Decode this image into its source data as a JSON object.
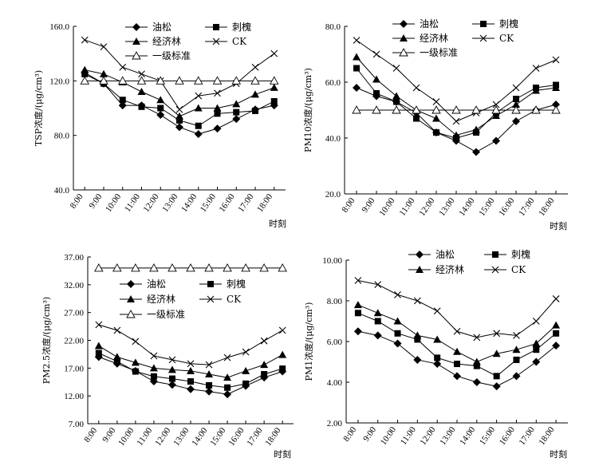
{
  "chart_data": [
    {
      "type": "line",
      "ylabel": "TSP浓度/(μg/cm³)",
      "xlabel": "时刻",
      "categories": [
        "8:00",
        "9:00",
        "10:00",
        "11:00",
        "12:00",
        "13:00",
        "14:00",
        "15:00",
        "16:00",
        "17:00",
        "18:00"
      ],
      "ylim": [
        40.0,
        160.0
      ],
      "yticks": [
        "40.0",
        "80.0",
        "120.0",
        "160.0"
      ],
      "series": [
        {
          "name": "油松",
          "marker": "diamond",
          "values": [
            126,
            118,
            102,
            102,
            95,
            86,
            81,
            85,
            92,
            99,
            102
          ]
        },
        {
          "name": "刺槐",
          "marker": "square",
          "values": [
            125,
            118,
            106,
            101,
            100,
            91,
            87,
            96,
            97,
            98,
            105
          ]
        },
        {
          "name": "经济林",
          "marker": "triangle",
          "values": [
            128,
            125,
            119,
            112,
            106,
            94,
            100,
            100,
            103,
            110,
            115
          ]
        },
        {
          "name": "CK",
          "marker": "x",
          "values": [
            150,
            145,
            130,
            125,
            120,
            99,
            109,
            111,
            118,
            130,
            140
          ]
        },
        {
          "name": "一级标准",
          "marker": "open-triangle",
          "values": [
            120,
            120,
            120,
            120,
            120,
            120,
            120,
            120,
            120,
            120,
            120
          ]
        }
      ]
    },
    {
      "type": "line",
      "ylabel": "PM10浓度/(μg/cm³)",
      "xlabel": "时刻",
      "categories": [
        "8:00",
        "9:00",
        "10:00",
        "11:00",
        "12:00",
        "13:00",
        "14:00",
        "15:00",
        "16:00",
        "17:00",
        "18:00"
      ],
      "ylim": [
        20.0,
        80.0
      ],
      "yticks": [
        "20.0",
        "40.0",
        "60.0",
        "80.0"
      ],
      "series": [
        {
          "name": "油松",
          "marker": "diamond",
          "values": [
            58,
            55,
            53,
            49,
            42,
            39,
            35,
            39,
            46,
            50,
            52
          ]
        },
        {
          "name": "刺槐",
          "marker": "square",
          "values": [
            65,
            56,
            53,
            47,
            42,
            40,
            42,
            49,
            54,
            58,
            59
          ]
        },
        {
          "name": "经济林",
          "marker": "triangle",
          "values": [
            69,
            61,
            55,
            50,
            47,
            41,
            43,
            48,
            52,
            57,
            58
          ]
        },
        {
          "name": "CK",
          "marker": "x",
          "values": [
            75,
            70,
            65,
            58,
            53,
            46,
            49,
            52,
            58,
            65,
            68
          ]
        },
        {
          "name": "一级标准",
          "marker": "open-triangle",
          "values": [
            50,
            50,
            50,
            50,
            50,
            50,
            50,
            50,
            50,
            50,
            50
          ]
        }
      ]
    },
    {
      "type": "line",
      "ylabel": "PM2.5浓度/(μg/cm³)",
      "xlabel": "时刻",
      "categories": [
        "8:00",
        "9:00",
        "10:00",
        "11:00",
        "12:00",
        "13:00",
        "14:00",
        "15:00",
        "16:00",
        "17:00",
        "18:00"
      ],
      "ylim": [
        7.0,
        37.0
      ],
      "yticks": [
        "7.00",
        "12.00",
        "17.00",
        "22.00",
        "27.00",
        "32.00",
        "37.00"
      ],
      "series": [
        {
          "name": "油松",
          "marker": "diamond",
          "values": [
            19.0,
            17.8,
            16.5,
            14.6,
            14.0,
            13.2,
            12.8,
            12.3,
            13.8,
            15.3,
            16.4
          ]
        },
        {
          "name": "刺槐",
          "marker": "square",
          "values": [
            19.7,
            18.2,
            16.4,
            15.5,
            15.1,
            14.6,
            13.9,
            13.5,
            14.2,
            15.9,
            16.9
          ]
        },
        {
          "name": "经济林",
          "marker": "triangle",
          "values": [
            21.0,
            19.0,
            18.0,
            17.0,
            16.7,
            16.5,
            15.9,
            15.3,
            16.5,
            17.6,
            19.4
          ]
        },
        {
          "name": "CK",
          "marker": "x",
          "values": [
            24.8,
            23.8,
            21.8,
            19.2,
            18.5,
            17.8,
            17.6,
            18.9,
            19.9,
            21.9,
            23.8
          ]
        },
        {
          "name": "一级标准",
          "marker": "open-triangle",
          "values": [
            35,
            35,
            35,
            35,
            35,
            35,
            35,
            35,
            35,
            35,
            35
          ]
        }
      ]
    },
    {
      "type": "line",
      "ylabel": "PM1浓度/(μg/cm³)",
      "xlabel": "时刻",
      "categories": [
        "8:00",
        "9:00",
        "10:00",
        "11:00",
        "12:00",
        "13:00",
        "14:00",
        "15:00",
        "16:00",
        "17:00",
        "18:00"
      ],
      "ylim": [
        2.0,
        10.0
      ],
      "yticks": [
        "2.00",
        "4.00",
        "6.00",
        "8.00",
        "10.00"
      ],
      "series": [
        {
          "name": "油松",
          "marker": "diamond",
          "values": [
            6.5,
            6.3,
            5.9,
            5.1,
            4.9,
            4.3,
            4.0,
            3.8,
            4.3,
            5.0,
            5.8
          ]
        },
        {
          "name": "刺槐",
          "marker": "square",
          "values": [
            7.4,
            7.0,
            6.4,
            6.1,
            5.2,
            4.9,
            4.8,
            4.3,
            5.1,
            5.6,
            6.4
          ]
        },
        {
          "name": "经济林",
          "marker": "triangle",
          "values": [
            7.8,
            7.4,
            7.0,
            6.3,
            6.1,
            5.5,
            5.0,
            5.4,
            5.6,
            5.9,
            6.8
          ]
        },
        {
          "name": "CK",
          "marker": "x",
          "values": [
            9.0,
            8.8,
            8.3,
            8.0,
            7.5,
            6.5,
            6.2,
            6.4,
            6.3,
            7.0,
            8.1
          ]
        }
      ]
    }
  ]
}
